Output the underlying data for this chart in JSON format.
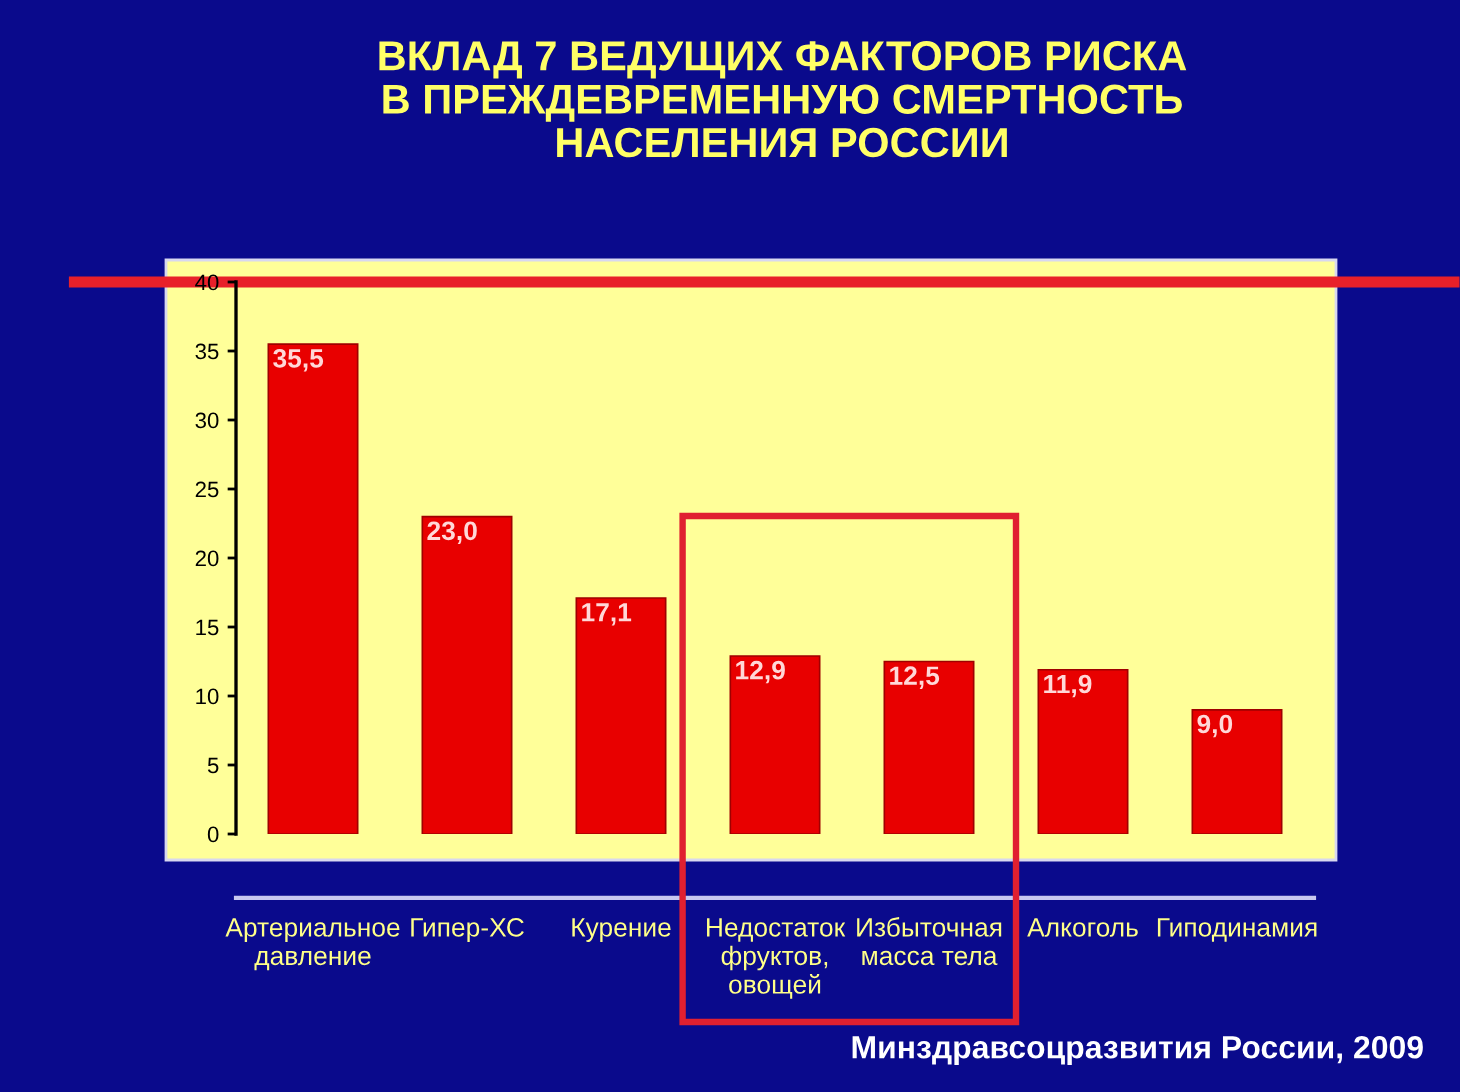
{
  "chart_data": {
    "type": "bar",
    "title": "ВКЛАД 7 ВЕДУЩИХ ФАКТОРОВ РИСКА\nВ ПРЕЖДЕВРЕМЕННУЮ СМЕРТНОСТЬ\nНАСЕЛЕНИЯ РОССИИ",
    "categories": [
      "Артериальное\nдавление",
      "Гипер-ХС",
      "Курение",
      "Недостаток\nфруктов,\nовощей",
      "Избыточная\nмасса тела",
      "Алкоголь",
      "Гиподинамия"
    ],
    "values": [
      35.5,
      23.0,
      17.1,
      12.9,
      12.5,
      11.9,
      9.0
    ],
    "value_labels": [
      "35,5",
      "23,0",
      "17,1",
      "12,9",
      "12,5",
      "11,9",
      "9,0"
    ],
    "color": "#e80000",
    "ylim": [
      0,
      40
    ],
    "yticks": [
      0,
      5,
      10,
      15,
      20,
      25,
      30,
      35,
      40
    ],
    "ref_lines": [
      {
        "axis": "y",
        "value": 40,
        "color": "#e8202a"
      }
    ],
    "annotations": [
      "Минздравсоцразвития России, 2009"
    ]
  }
}
